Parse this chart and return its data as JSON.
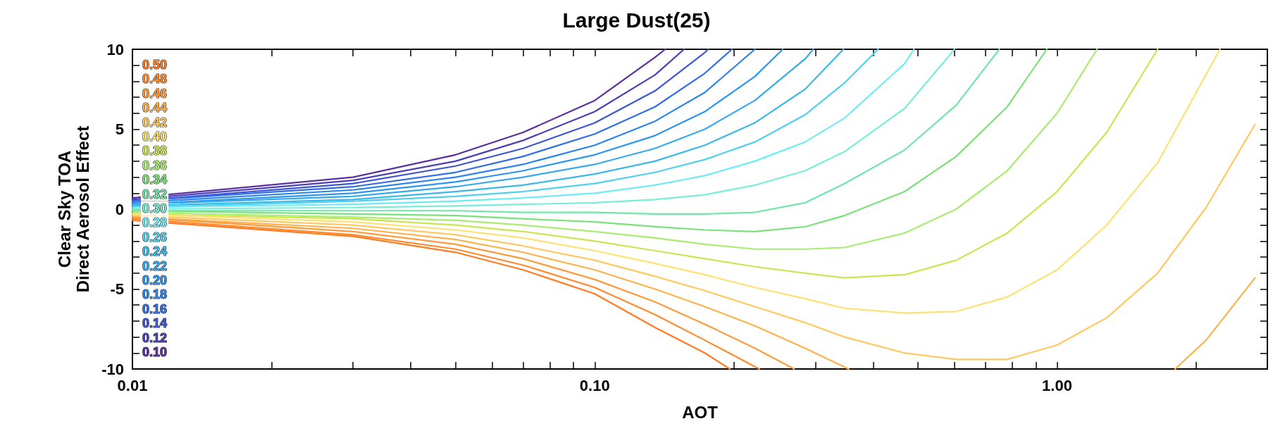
{
  "chart_data": {
    "type": "line",
    "title": "Large Dust(25)",
    "xlabel": "AOT",
    "ylabel": "Clear Sky TOA\nDirect Aerosol Effect",
    "log": "x",
    "marker": "none",
    "line_style": "solid",
    "xlim": [
      0.01,
      2.85
    ],
    "xticks": [
      0.01,
      {
        "value": 0.02,
        "label": null
      },
      {
        "value": 0.03,
        "label": null
      },
      {
        "value": 0.04,
        "label": null
      },
      {
        "value": 0.05,
        "label": null
      },
      {
        "value": 0.06,
        "label": null
      },
      {
        "value": 0.07,
        "label": null
      },
      {
        "value": 0.08,
        "label": null
      },
      {
        "value": 0.09,
        "label": null
      },
      {
        "value": 0.1,
        "label": "0.10"
      },
      {
        "value": 0.2,
        "label": null
      },
      {
        "value": 0.3,
        "label": null
      },
      {
        "value": 0.4,
        "label": null
      },
      {
        "value": 0.5,
        "label": null
      },
      {
        "value": 0.6,
        "label": null
      },
      {
        "value": 0.7,
        "label": null
      },
      {
        "value": 0.8,
        "label": null
      },
      {
        "value": 0.9,
        "label": null
      },
      {
        "value": 1,
        "label": "1.00"
      },
      {
        "value": 2,
        "label": null
      }
    ],
    "ylim": [
      -10,
      10
    ],
    "yticks": [
      -10,
      {
        "value": -9,
        "label": null
      },
      {
        "value": -8,
        "label": null
      },
      {
        "value": -7,
        "label": null
      },
      {
        "value": -6,
        "label": null
      },
      -5,
      {
        "value": -4,
        "label": null
      },
      {
        "value": -3,
        "label": null
      },
      {
        "value": -2,
        "label": null
      },
      {
        "value": -1,
        "label": null
      },
      0,
      {
        "value": 1,
        "label": null
      },
      {
        "value": 2,
        "label": null
      },
      {
        "value": 3,
        "label": null
      },
      {
        "value": 4,
        "label": null
      },
      5,
      {
        "value": 6,
        "label": null
      },
      {
        "value": 7,
        "label": null
      },
      {
        "value": 8,
        "label": null
      },
      {
        "value": 9,
        "label": null
      },
      10
    ],
    "series": [
      {
        "name": "0.10",
        "color": "#5b2d9e",
        "x": [
          0.01,
          0.03,
          0.05,
          0.07,
          0.1,
          0.135,
          0.142
        ],
        "values": [
          0.7,
          2.0,
          3.4,
          4.8,
          6.8,
          9.5,
          10
        ]
      },
      {
        "name": "0.12",
        "color": "#4a3fb8",
        "x": [
          0.01,
          0.03,
          0.05,
          0.07,
          0.1,
          0.135,
          0.156
        ],
        "values": [
          0.6,
          1.8,
          3.0,
          4.3,
          6.1,
          8.4,
          10
        ]
      },
      {
        "name": "0.14",
        "color": "#3b55d6",
        "x": [
          0.01,
          0.03,
          0.05,
          0.07,
          0.1,
          0.135,
          0.173,
          0.176
        ],
        "values": [
          0.5,
          1.6,
          2.7,
          3.8,
          5.4,
          7.4,
          9.8,
          10
        ]
      },
      {
        "name": "0.16",
        "color": "#2f6ee8",
        "x": [
          0.01,
          0.03,
          0.05,
          0.07,
          0.1,
          0.135,
          0.173,
          0.198
        ],
        "values": [
          0.5,
          1.4,
          2.3,
          3.3,
          4.7,
          6.4,
          8.5,
          10
        ]
      },
      {
        "name": "0.18",
        "color": "#2a84f0",
        "x": [
          0.01,
          0.03,
          0.05,
          0.07,
          0.1,
          0.135,
          0.173,
          0.222
        ],
        "values": [
          0.4,
          1.2,
          2.0,
          2.8,
          4.0,
          5.5,
          7.3,
          10
        ]
      },
      {
        "name": "0.20",
        "color": "#2b95f2",
        "x": [
          0.01,
          0.03,
          0.05,
          0.07,
          0.1,
          0.135,
          0.173,
          0.222,
          0.255
        ],
        "values": [
          0.3,
          1.0,
          1.7,
          2.4,
          3.4,
          4.6,
          6.1,
          8.3,
          10
        ]
      },
      {
        "name": "0.22",
        "color": "#34a9ee",
        "x": [
          0.01,
          0.03,
          0.05,
          0.07,
          0.1,
          0.135,
          0.173,
          0.222,
          0.285,
          0.297
        ],
        "values": [
          0.3,
          0.8,
          1.4,
          2.0,
          2.8,
          3.8,
          5.0,
          6.8,
          9.4,
          10
        ]
      },
      {
        "name": "0.24",
        "color": "#3ab8e8",
        "x": [
          0.01,
          0.03,
          0.05,
          0.07,
          0.1,
          0.135,
          0.173,
          0.222,
          0.285,
          0.345
        ],
        "values": [
          0.2,
          0.6,
          1.1,
          1.5,
          2.2,
          3.0,
          4.0,
          5.4,
          7.5,
          10
        ]
      },
      {
        "name": "0.26",
        "color": "#4fd0ee",
        "x": [
          0.01,
          0.03,
          0.05,
          0.07,
          0.1,
          0.135,
          0.173,
          0.222,
          0.285,
          0.347,
          0.41
        ],
        "values": [
          0.1,
          0.5,
          0.8,
          1.1,
          1.6,
          2.3,
          3.1,
          4.2,
          5.9,
          7.9,
          10
        ]
      },
      {
        "name": "0.28",
        "color": "#6eecf5",
        "x": [
          0.01,
          0.03,
          0.05,
          0.07,
          0.1,
          0.135,
          0.173,
          0.222,
          0.285,
          0.347,
          0.468,
          0.49
        ],
        "values": [
          0.1,
          0.3,
          0.5,
          0.7,
          1.0,
          1.5,
          2.1,
          3.0,
          4.2,
          5.7,
          9.1,
          10
        ]
      },
      {
        "name": "0.30",
        "color": "#78eed8",
        "x": [
          0.01,
          0.03,
          0.05,
          0.07,
          0.1,
          0.135,
          0.173,
          0.222,
          0.285,
          0.347,
          0.468,
          0.6
        ],
        "values": [
          0,
          0.1,
          0.2,
          0.3,
          0.4,
          0.6,
          0.9,
          1.5,
          2.4,
          3.6,
          6.3,
          10
        ]
      },
      {
        "name": "0.32",
        "color": "#6fe6a8",
        "x": [
          0.01,
          0.03,
          0.05,
          0.07,
          0.1,
          0.135,
          0.173,
          0.222,
          0.285,
          0.347,
          0.468,
          0.605,
          0.75
        ],
        "values": [
          -0.1,
          -0.1,
          -0.1,
          -0.2,
          -0.2,
          -0.3,
          -0.3,
          -0.2,
          0.4,
          1.6,
          3.7,
          6.5,
          10
        ]
      },
      {
        "name": "0.34",
        "color": "#78e278",
        "x": [
          0.01,
          0.03,
          0.05,
          0.07,
          0.1,
          0.135,
          0.173,
          0.222,
          0.285,
          0.347,
          0.468,
          0.605,
          0.78,
          0.95
        ],
        "values": [
          -0.1,
          -0.3,
          -0.4,
          -0.6,
          -0.8,
          -1.1,
          -1.3,
          -1.4,
          -1.1,
          -0.4,
          1.1,
          3.3,
          6.4,
          10
        ]
      },
      {
        "name": "0.36",
        "color": "#a8ec70",
        "x": [
          0.01,
          0.03,
          0.05,
          0.07,
          0.1,
          0.135,
          0.173,
          0.222,
          0.285,
          0.347,
          0.468,
          0.605,
          0.78,
          1.0,
          1.22
        ],
        "values": [
          -0.2,
          -0.5,
          -0.7,
          -1.0,
          -1.4,
          -1.8,
          -2.2,
          -2.5,
          -2.5,
          -2.4,
          -1.5,
          0.0,
          2.4,
          6.0,
          10
        ]
      },
      {
        "name": "0.38",
        "color": "#c9e650",
        "x": [
          0.01,
          0.03,
          0.05,
          0.07,
          0.1,
          0.135,
          0.173,
          0.222,
          0.285,
          0.347,
          0.468,
          0.605,
          0.78,
          1.0,
          1.28,
          1.65
        ],
        "values": [
          -0.3,
          -0.6,
          -1.0,
          -1.4,
          -2.0,
          -2.6,
          -3.1,
          -3.6,
          -4.0,
          -4.3,
          -4.1,
          -3.2,
          -1.5,
          1.1,
          4.8,
          10
        ]
      },
      {
        "name": "0.40",
        "color": "#ffe070",
        "x": [
          0.01,
          0.03,
          0.05,
          0.07,
          0.1,
          0.135,
          0.173,
          0.222,
          0.285,
          0.347,
          0.468,
          0.605,
          0.78,
          1.0,
          1.28,
          1.65,
          2.25
        ],
        "values": [
          -0.3,
          -0.8,
          -1.3,
          -1.8,
          -2.6,
          -3.4,
          -4.1,
          -4.9,
          -5.6,
          -6.2,
          -6.5,
          -6.4,
          -5.5,
          -3.8,
          -1.0,
          2.9,
          10
        ]
      },
      {
        "name": "0.42",
        "color": "#ffc860",
        "x": [
          0.01,
          0.03,
          0.05,
          0.07,
          0.1,
          0.135,
          0.173,
          0.222,
          0.285,
          0.347,
          0.468,
          0.605,
          0.78,
          1.0,
          1.28,
          1.65,
          2.1,
          2.68
        ],
        "values": [
          -0.4,
          -1.0,
          -1.6,
          -2.3,
          -3.2,
          -4.2,
          -5.1,
          -6.1,
          -7.1,
          -8.0,
          -9.0,
          -9.4,
          -9.4,
          -8.5,
          -6.8,
          -4.0,
          0.1,
          5.3
        ]
      },
      {
        "name": "0.44",
        "color": "#ffb04a",
        "x": [
          0.01,
          0.03,
          0.05,
          0.07,
          0.1,
          0.135,
          0.173,
          0.222,
          0.285,
          0.354,
          0.8,
          1.8,
          2.1,
          2.68
        ],
        "values": [
          -0.5,
          -1.2,
          -1.9,
          -2.7,
          -3.8,
          -5.0,
          -6.1,
          -7.3,
          -8.7,
          -10,
          null,
          -10,
          -8.2,
          -4.3
        ]
      },
      {
        "name": "0.46",
        "color": "#ff9a3a",
        "x": [
          0.01,
          0.03,
          0.05,
          0.07,
          0.1,
          0.135,
          0.173,
          0.222,
          0.27
        ],
        "values": [
          -0.5,
          -1.4,
          -2.2,
          -3.1,
          -4.4,
          -5.8,
          -7.2,
          -8.7,
          -10
        ]
      },
      {
        "name": "0.48",
        "color": "#ff8a2c",
        "x": [
          0.01,
          0.03,
          0.05,
          0.07,
          0.1,
          0.135,
          0.173,
          0.227
        ],
        "values": [
          -0.6,
          -1.6,
          -2.5,
          -3.5,
          -4.9,
          -6.6,
          -8.2,
          -10
        ]
      },
      {
        "name": "0.50",
        "color": "#ff7a20",
        "x": [
          0.01,
          0.03,
          0.05,
          0.07,
          0.1,
          0.135,
          0.173,
          0.196
        ],
        "values": [
          -0.7,
          -1.7,
          -2.7,
          -3.8,
          -5.3,
          -7.4,
          -9.0,
          -10
        ]
      }
    ]
  }
}
